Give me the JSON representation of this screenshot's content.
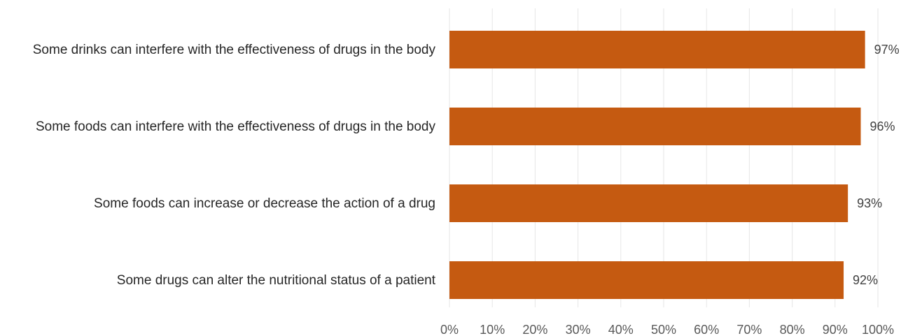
{
  "chart_data": {
    "type": "bar",
    "orientation": "horizontal",
    "categories": [
      "Some drinks can interfere with the effectiveness of drugs in the body",
      "Some foods can interfere with the effectiveness of drugs in the body",
      "Some foods can increase or decrease the action of a drug",
      "Some drugs can alter the nutritional status of a patient"
    ],
    "values": [
      97,
      96,
      93,
      92
    ],
    "data_labels": [
      "97%",
      "96%",
      "93%",
      "92%"
    ],
    "x_ticks": [
      "0%",
      "10%",
      "20%",
      "30%",
      "40%",
      "50%",
      "60%",
      "70%",
      "80%",
      "90%",
      "100%"
    ],
    "xlim": [
      0,
      100
    ],
    "grid": true,
    "bar_color": "#c55a11",
    "title": "",
    "xlabel": "",
    "ylabel": ""
  }
}
